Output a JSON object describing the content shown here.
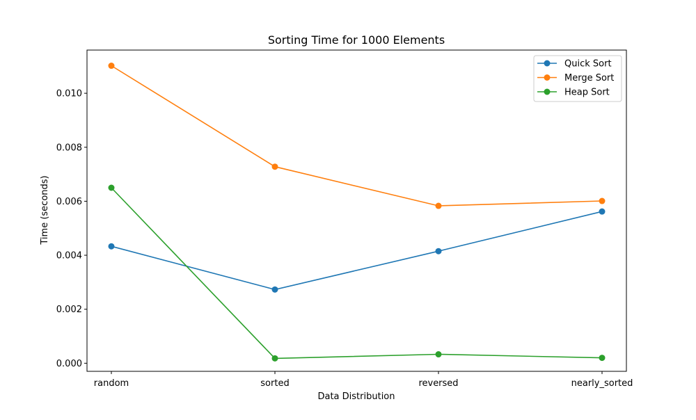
{
  "chart_data": {
    "type": "line",
    "title": "Sorting Time for 1000 Elements",
    "xlabel": "Data Distribution",
    "ylabel": "Time (seconds)",
    "categories": [
      "random",
      "sorted",
      "reversed",
      "nearly_sorted"
    ],
    "ylim": [
      -0.0003,
      0.0116
    ],
    "yticks": [
      0.0,
      0.002,
      0.004,
      0.006,
      0.008,
      0.01
    ],
    "ytick_labels": [
      "0.000",
      "0.002",
      "0.004",
      "0.006",
      "0.008",
      "0.010"
    ],
    "grid": false,
    "legend_position": "top-right",
    "series": [
      {
        "name": "Quick Sort",
        "color": "#1f77b4",
        "values": [
          0.00433,
          0.00273,
          0.00415,
          0.00562
        ]
      },
      {
        "name": "Merge Sort",
        "color": "#ff7f0e",
        "values": [
          0.01102,
          0.00728,
          0.00583,
          0.00601
        ]
      },
      {
        "name": "Heap Sort",
        "color": "#2ca02c",
        "values": [
          0.0065,
          0.00018,
          0.00033,
          0.0002
        ]
      }
    ]
  }
}
